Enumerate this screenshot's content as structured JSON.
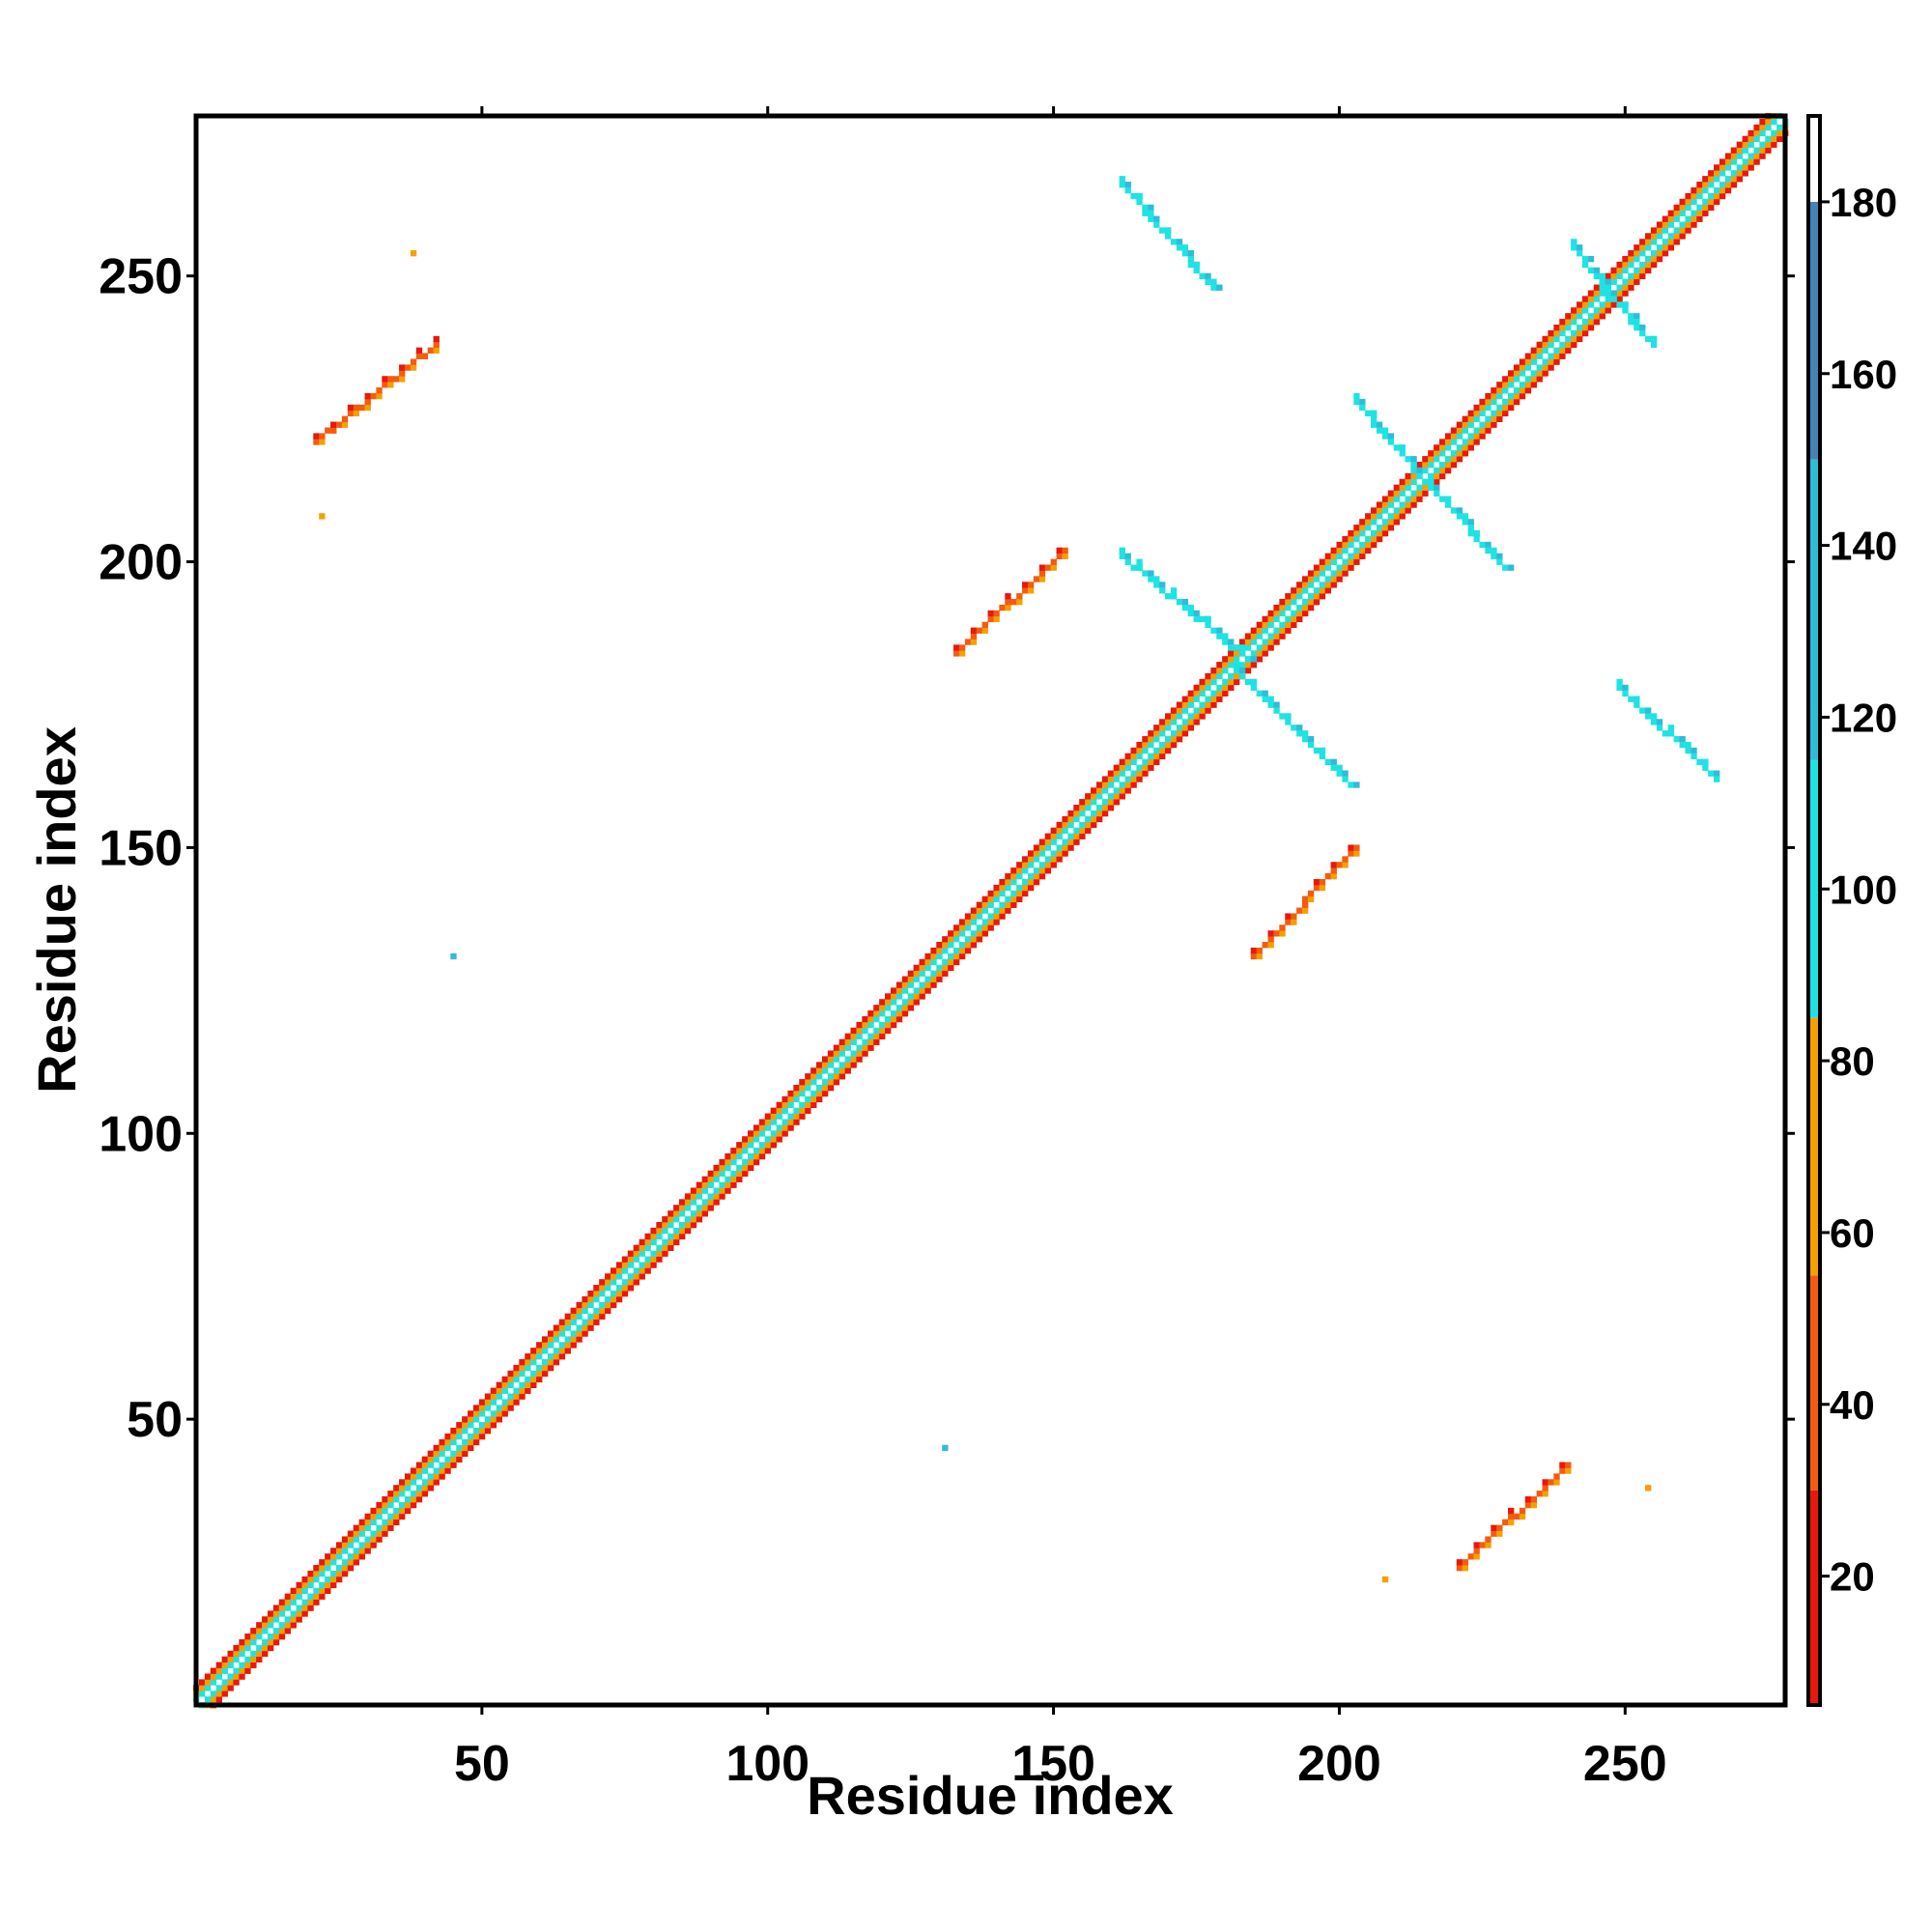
{
  "chart_data": {
    "type": "heatmap",
    "title": "",
    "xlabel": "Residue index",
    "ylabel": "Residue index",
    "xlim": [
      0,
      278
    ],
    "ylim": [
      0,
      278
    ],
    "x_ticks": [
      50,
      100,
      150,
      200,
      250
    ],
    "y_ticks": [
      50,
      100,
      150,
      200,
      250
    ],
    "grid": false,
    "colorbar": {
      "range": [
        5,
        190
      ],
      "ticks": [
        20,
        40,
        60,
        80,
        100,
        120,
        140,
        160,
        180
      ],
      "segments": [
        {
          "from": 5,
          "to": 30,
          "color": "#e8180c"
        },
        {
          "from": 30,
          "to": 55,
          "color": "#f45b10"
        },
        {
          "from": 55,
          "to": 85,
          "color": "#f5a000"
        },
        {
          "from": 85,
          "to": 115,
          "color": "#1fe3e3"
        },
        {
          "from": 115,
          "to": 150,
          "color": "#2fbcd8"
        },
        {
          "from": 150,
          "to": 180,
          "color": "#4682b4"
        },
        {
          "from": 180,
          "to": 190,
          "color": "#ffffff"
        }
      ]
    },
    "diagonal_band": {
      "from": 0,
      "to": 278,
      "value_pattern": [
        100,
        70,
        20
      ]
    },
    "off_diagonal_blocks": [
      {
        "x_start": 21,
        "y_start": 221,
        "x_end": 42,
        "y_end": 238,
        "value": 40
      },
      {
        "x_start": 162,
        "y_start": 266,
        "x_end": 178,
        "y_end": 248,
        "value": 105
      },
      {
        "x_start": 133,
        "y_start": 184,
        "x_end": 152,
        "y_end": 202,
        "value": 40
      },
      {
        "x_start": 162,
        "y_start": 201,
        "x_end": 184,
        "y_end": 183,
        "value": 100
      },
      {
        "x_start": 182,
        "y_start": 181,
        "x_end": 202,
        "y_end": 161,
        "value": 100
      },
      {
        "x_start": 185,
        "y_start": 131,
        "x_end": 203,
        "y_end": 150,
        "value": 40
      },
      {
        "x_start": 203,
        "y_start": 228,
        "x_end": 216,
        "y_end": 213,
        "value": 105
      },
      {
        "x_start": 216,
        "y_start": 213,
        "x_end": 229,
        "y_end": 199,
        "value": 105
      },
      {
        "x_start": 241,
        "y_start": 255,
        "x_end": 247,
        "y_end": 247,
        "value": 110
      },
      {
        "x_start": 247,
        "y_start": 247,
        "x_end": 255,
        "y_end": 238,
        "value": 110
      },
      {
        "x_start": 249,
        "y_start": 178,
        "x_end": 266,
        "y_end": 162,
        "value": 100
      },
      {
        "x_start": 221,
        "y_start": 24,
        "x_end": 240,
        "y_end": 42,
        "value": 40
      }
    ],
    "isolated_points": [
      {
        "x": 45,
        "y": 131,
        "value": 130
      },
      {
        "x": 131,
        "y": 45,
        "value": 130
      },
      {
        "x": 38,
        "y": 254,
        "value": 70
      },
      {
        "x": 22,
        "y": 208,
        "value": 70
      },
      {
        "x": 254,
        "y": 38,
        "value": 70
      },
      {
        "x": 208,
        "y": 22,
        "value": 70
      }
    ]
  }
}
